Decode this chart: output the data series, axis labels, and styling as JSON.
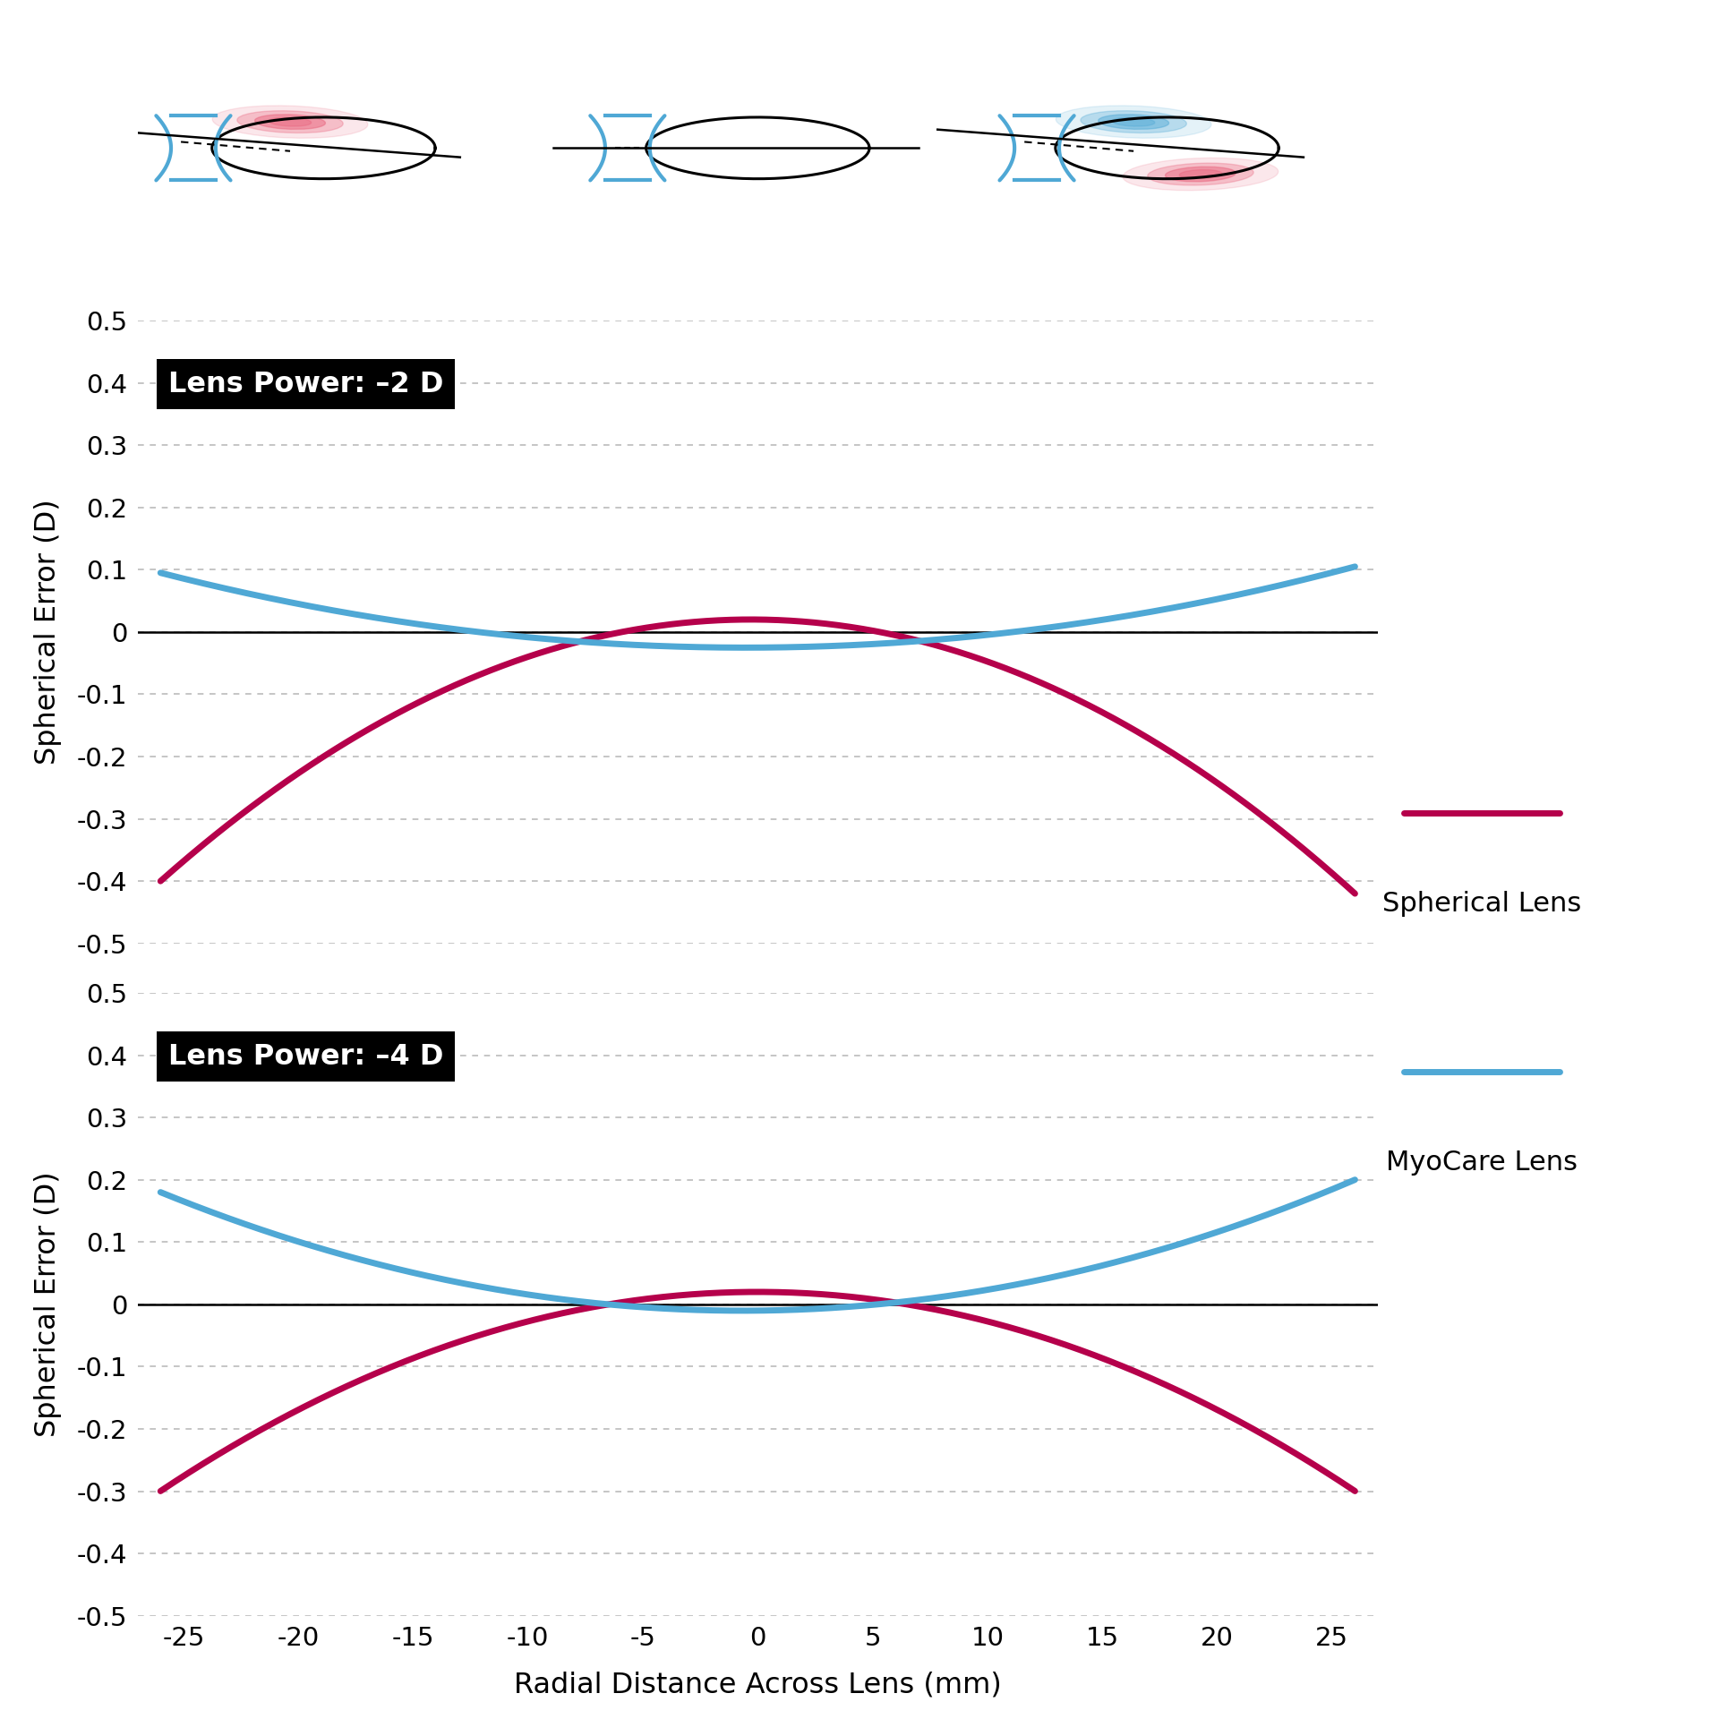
{
  "xlabel": "Radial Distance Across Lens (mm)",
  "ylabel": "Spherical Error (D)",
  "xlim": [
    -27,
    27
  ],
  "ylim": [
    -0.5,
    0.5
  ],
  "xticks": [
    -25,
    -20,
    -15,
    -10,
    -5,
    0,
    5,
    10,
    15,
    20,
    25
  ],
  "yticks": [
    -0.5,
    -0.4,
    -0.3,
    -0.2,
    -0.1,
    0,
    0.1,
    0.2,
    0.3,
    0.4,
    0.5
  ],
  "ytick_labels": [
    "-0.5",
    "-0.4",
    "-0.3",
    "-0.2",
    "-0.1",
    "0",
    "0.1",
    "0.2",
    "0.3",
    "0.4",
    "0.5"
  ],
  "label1": "Lens Power: –2 D",
  "label2": "Lens Power: –4 D",
  "spherical_color": "#B5004B",
  "myocare_color": "#4FA8D5",
  "zero_line_color": "#000000",
  "legend_spherical": "Spherical Lens",
  "legend_myocare": "MyoCare Lens",
  "background_color": "#FFFFFF",
  "grid_color": "#BBBBBB",
  "line_width": 5.0,
  "tick_fontsize": 21,
  "label_fontsize": 23,
  "legend_fontsize": 22
}
